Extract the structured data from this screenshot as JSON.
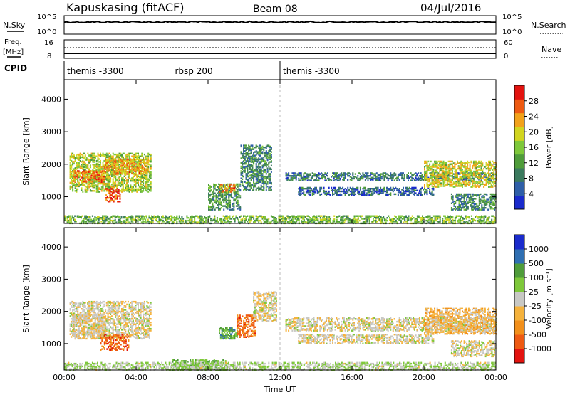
{
  "header": {
    "station": "Kapuskasing (fitACF)",
    "beam": "Beam 08",
    "date": "04/Jul/2016"
  },
  "top_panels": {
    "nsky_label": "N.Sky",
    "nsky_ticks": [
      "10^5",
      "10^0"
    ],
    "nsearch_label": "N.Search",
    "nsearch_ticks": [
      "10^5",
      "10^0"
    ],
    "freq_label": "Freq.",
    "freq_unit": "[MHz]",
    "freq_ticks": [
      "16",
      "8"
    ],
    "nave_label": "Nave",
    "nave_ticks": [
      "60",
      "0"
    ],
    "cpid_label": "CPID",
    "cpid_segments": [
      {
        "label": "themis -3300",
        "start_hour": 0,
        "end_hour": 6
      },
      {
        "label": "rbsp 200",
        "start_hour": 6,
        "end_hour": 12
      },
      {
        "label": "themis -3300",
        "start_hour": 12,
        "end_hour": 24
      }
    ]
  },
  "colors": {
    "power_scale": [
      "#1a2bcc",
      "#2f5fa8",
      "#3b7a5e",
      "#4f9c3a",
      "#7ec83a",
      "#d2d51f",
      "#f2a21a",
      "#ee5a12",
      "#e3130f"
    ],
    "velocity_scale": [
      "#e3130f",
      "#ee5a12",
      "#f28f1a",
      "#f5b23c",
      "#c8c8c4",
      "#7ec83a",
      "#4f9c3a",
      "#2f6fb2",
      "#1a2bcc"
    ]
  },
  "chart_data": [
    {
      "type": "heatmap",
      "panel": "power",
      "ylabel": "Slant Range [km]",
      "xlabel": "Time UT",
      "xlim_hours": [
        0,
        24
      ],
      "ylim_km": [
        180,
        4600
      ],
      "y_ticks": [
        "1000",
        "2000",
        "3000",
        "4000"
      ],
      "x_tick_labels": [
        "00:00",
        "04:00",
        "08:00",
        "12:00",
        "16:00",
        "20:00",
        "00:00"
      ],
      "colorbar_label": "Power [dB]",
      "colorbar_ticks": [
        "4",
        "8",
        "12",
        "16",
        "20",
        "24",
        "28"
      ],
      "colorbar_range": [
        0,
        30
      ],
      "regions": [
        {
          "t0": 0.3,
          "t1": 4.8,
          "r0": 1150,
          "r1": 2350,
          "level": 0.55
        },
        {
          "t0": 0.5,
          "t1": 2.2,
          "r0": 1450,
          "r1": 1800,
          "level": 0.8
        },
        {
          "t0": 2.2,
          "t1": 4.6,
          "r0": 1700,
          "r1": 2150,
          "level": 0.72
        },
        {
          "t0": 2.3,
          "t1": 3.1,
          "r0": 850,
          "r1": 1250,
          "level": 0.9
        },
        {
          "t0": 8.0,
          "t1": 9.8,
          "r0": 600,
          "r1": 1400,
          "level": 0.35
        },
        {
          "t0": 8.6,
          "t1": 9.5,
          "r0": 1150,
          "r1": 1400,
          "level": 0.75
        },
        {
          "t0": 9.8,
          "t1": 11.5,
          "r0": 1200,
          "r1": 2600,
          "level": 0.3
        },
        {
          "t0": 12.3,
          "t1": 24.0,
          "r0": 1500,
          "r1": 1750,
          "level": 0.25
        },
        {
          "t0": 13.0,
          "t1": 20.5,
          "r0": 1050,
          "r1": 1300,
          "level": 0.2
        },
        {
          "t0": 20.0,
          "t1": 24.0,
          "r0": 1300,
          "r1": 2100,
          "level": 0.6
        },
        {
          "t0": 21.5,
          "t1": 24.0,
          "r0": 600,
          "r1": 1100,
          "level": 0.3
        },
        {
          "t0": 0.0,
          "t1": 24.0,
          "r0": 180,
          "r1": 420,
          "level": 0.45
        }
      ]
    },
    {
      "type": "heatmap",
      "panel": "velocity",
      "ylabel": "Slant Range [km]",
      "xlabel": "Time UT",
      "xlim_hours": [
        0,
        24
      ],
      "ylim_km": [
        180,
        4600
      ],
      "y_ticks": [
        "1000",
        "2000",
        "3000",
        "4000"
      ],
      "x_tick_labels": [
        "00:00",
        "04:00",
        "08:00",
        "12:00",
        "16:00",
        "20:00",
        "00:00"
      ],
      "colorbar_label": "Velocity [m s⁻¹]",
      "colorbar_ticks": [
        "1000",
        "500",
        "100",
        "25",
        "-25",
        "-100",
        "-500",
        "-1000"
      ],
      "regions": [
        {
          "t0": 0.3,
          "t1": 4.8,
          "r0": 1150,
          "r1": 2300,
          "level": 0.48
        },
        {
          "t0": 0.5,
          "t1": 2.3,
          "r0": 1250,
          "r1": 1900,
          "level": 0.46
        },
        {
          "t0": 2.0,
          "t1": 3.6,
          "r0": 800,
          "r1": 1300,
          "level": 0.18
        },
        {
          "t0": 8.6,
          "t1": 9.6,
          "r0": 1150,
          "r1": 1500,
          "level": 0.72
        },
        {
          "t0": 9.6,
          "t1": 10.6,
          "r0": 1200,
          "r1": 1900,
          "level": 0.2
        },
        {
          "t0": 10.5,
          "t1": 11.8,
          "r0": 1700,
          "r1": 2600,
          "level": 0.48
        },
        {
          "t0": 12.3,
          "t1": 24.0,
          "r0": 1400,
          "r1": 1800,
          "level": 0.48
        },
        {
          "t0": 13.0,
          "t1": 20.5,
          "r0": 1000,
          "r1": 1300,
          "level": 0.48
        },
        {
          "t0": 20.0,
          "t1": 24.0,
          "r0": 1300,
          "r1": 2100,
          "level": 0.4
        },
        {
          "t0": 21.5,
          "t1": 24.0,
          "r0": 600,
          "r1": 1100,
          "level": 0.48
        },
        {
          "t0": 6.0,
          "t1": 9.0,
          "r0": 180,
          "r1": 500,
          "level": 0.66
        },
        {
          "t0": 0.0,
          "t1": 24.0,
          "r0": 180,
          "r1": 420,
          "level": 0.55
        }
      ]
    }
  ]
}
